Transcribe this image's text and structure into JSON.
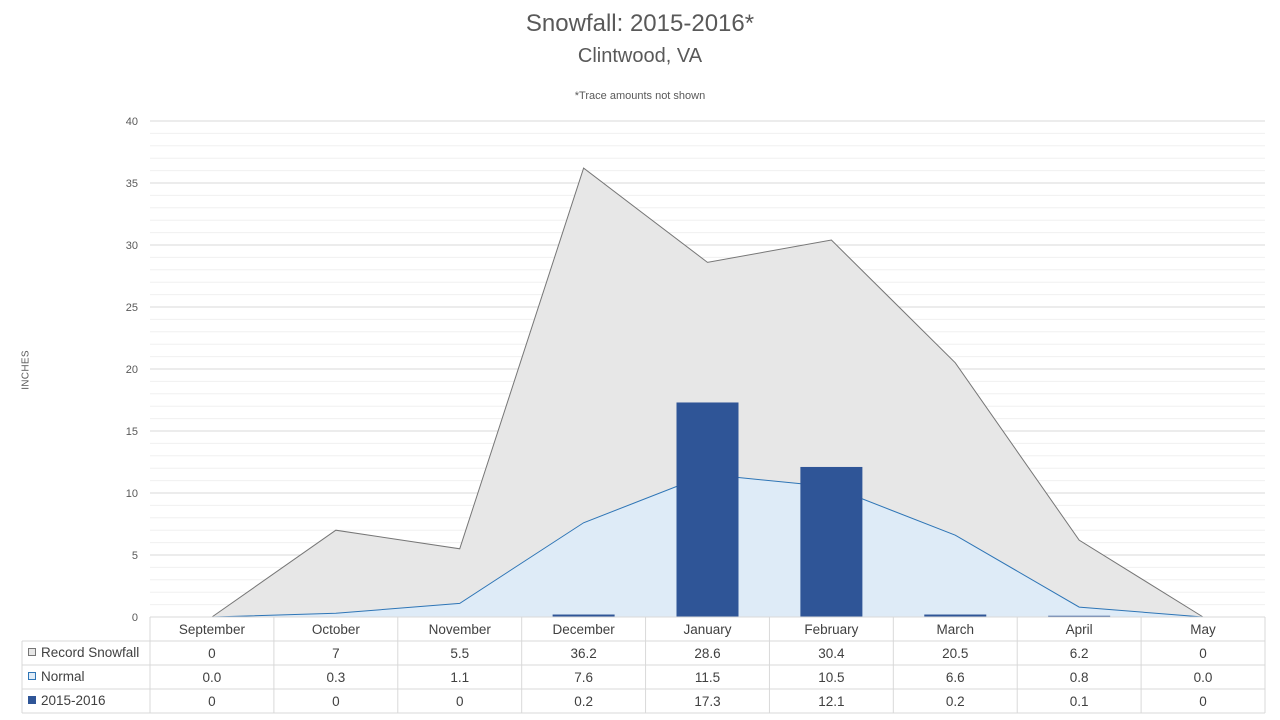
{
  "colors": {
    "record_fill": "#e7e7e7",
    "record_line": "#767676",
    "normal_fill": "#deebf7",
    "normal_line": "#2e75b6",
    "season_bar": "#2f5597",
    "grid_major": "#d9d9d9",
    "grid_minor": "#f0f0f0",
    "table_border": "#d9d9d9",
    "text": "#595959"
  },
  "chart_data": {
    "type": "area",
    "title": "Snowfall: 2015-2016*",
    "subtitle": "Clintwood, VA",
    "note": "*Trace amounts not shown",
    "ylabel": "INCHES",
    "xlabel": "",
    "ylim": [
      0,
      40
    ],
    "yticks": [
      0,
      5,
      10,
      15,
      20,
      25,
      30,
      35,
      40
    ],
    "grid": true,
    "legend": "data-table-bottom",
    "categories": [
      "September",
      "October",
      "November",
      "December",
      "January",
      "February",
      "March",
      "April",
      "May"
    ],
    "series": [
      {
        "name": "Record Snowfall",
        "kind": "area",
        "values": [
          0,
          7,
          5.5,
          36.2,
          28.6,
          30.4,
          20.5,
          6.2,
          0
        ],
        "labels": [
          "0",
          "7",
          "5.5",
          "36.2",
          "28.6",
          "30.4",
          "20.5",
          "6.2",
          "0"
        ]
      },
      {
        "name": "Normal",
        "kind": "area",
        "values": [
          0.0,
          0.3,
          1.1,
          7.6,
          11.5,
          10.5,
          6.6,
          0.8,
          0.0
        ],
        "labels": [
          "0.0",
          "0.3",
          "1.1",
          "7.6",
          "11.5",
          "10.5",
          "6.6",
          "0.8",
          "0.0"
        ]
      },
      {
        "name": "2015-2016",
        "kind": "bar",
        "values": [
          0,
          0,
          0,
          0.2,
          17.3,
          12.1,
          0.2,
          0.1,
          0
        ],
        "labels": [
          "0",
          "0",
          "0",
          "0.2",
          "17.3",
          "12.1",
          "0.2",
          "0.1",
          "0"
        ]
      }
    ]
  }
}
